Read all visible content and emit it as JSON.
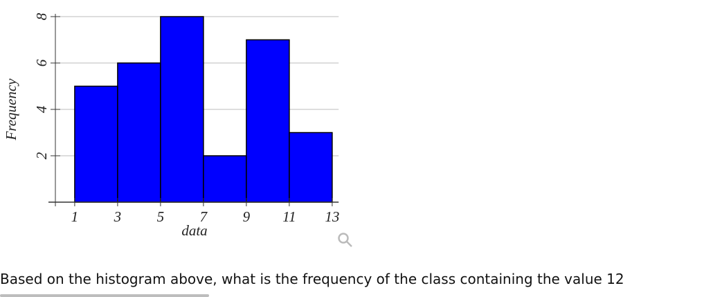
{
  "chart_data": {
    "type": "histogram",
    "xlabel": "data",
    "ylabel": "Frequency",
    "bins": [
      1,
      3,
      5,
      7,
      9,
      11,
      13
    ],
    "counts": [
      5,
      6,
      8,
      2,
      7,
      3
    ],
    "color": "#0000ff",
    "xlim": [
      0.1,
      13.3
    ],
    "ylim": [
      0,
      8
    ],
    "xticks": [
      1,
      3,
      5,
      7,
      9,
      11,
      13
    ],
    "yticks": [
      2,
      4,
      6,
      8
    ],
    "grid": true
  },
  "question": "Based on the histogram above, what is the frequency of the class containing the value 12"
}
